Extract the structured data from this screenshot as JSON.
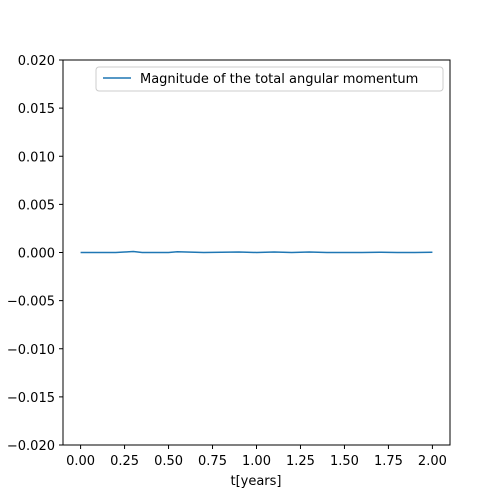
{
  "chart_data": {
    "type": "line",
    "title": "",
    "xlabel": "t[years]",
    "ylabel": "",
    "xlim": [
      -0.1,
      2.1
    ],
    "ylim": [
      -0.02,
      0.02
    ],
    "xticks": [
      0.0,
      0.25,
      0.5,
      0.75,
      1.0,
      1.25,
      1.5,
      1.75,
      2.0
    ],
    "xtick_labels": [
      "0.00",
      "0.25",
      "0.50",
      "0.75",
      "1.00",
      "1.25",
      "1.50",
      "1.75",
      "2.00"
    ],
    "yticks": [
      -0.02,
      -0.015,
      -0.01,
      -0.005,
      0.0,
      0.005,
      0.01,
      0.015,
      0.02
    ],
    "ytick_labels": [
      "−0.020",
      "−0.015",
      "−0.010",
      "−0.005",
      "0.000",
      "0.005",
      "0.010",
      "0.015",
      "0.020"
    ],
    "grid": false,
    "legend_position": "top-right",
    "series": [
      {
        "name": "Magnitude of the total angular momentum",
        "color": "#1f77b4",
        "x": [
          0.0,
          0.1,
          0.2,
          0.25,
          0.3,
          0.35,
          0.4,
          0.5,
          0.55,
          0.6,
          0.7,
          0.8,
          0.9,
          1.0,
          1.1,
          1.2,
          1.3,
          1.4,
          1.5,
          1.6,
          1.7,
          1.8,
          1.9,
          2.0
        ],
        "y": [
          0.0,
          0.0,
          0.0,
          5e-05,
          0.0001,
          0.0,
          0.0,
          0.0,
          8e-05,
          5e-05,
          0.0,
          3e-05,
          5e-05,
          0.0,
          5e-05,
          0.0,
          5e-05,
          0.0,
          0.0,
          0.0,
          3e-05,
          0.0,
          0.0,
          3e-05
        ]
      }
    ]
  }
}
